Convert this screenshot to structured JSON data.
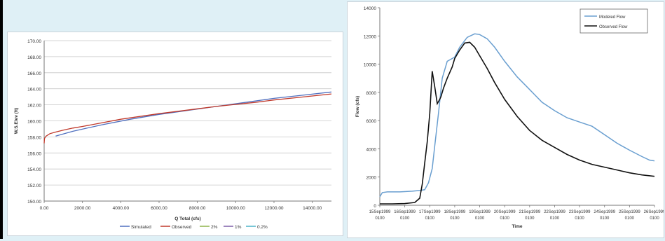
{
  "chart_data": [
    {
      "type": "line",
      "xlabel": "Q Total (cfs)",
      "ylabel": "W.S.Elev (ft)",
      "xlim": [
        0,
        15000
      ],
      "ylim": [
        150,
        170
      ],
      "grid": true,
      "legend_position": "bottom",
      "xticks": [
        "0.00",
        "2000.00",
        "4000.00",
        "6000.00",
        "8000.00",
        "10000.00",
        "12000.00",
        "14000.00"
      ],
      "yticks": [
        "150.00",
        "152.00",
        "154.00",
        "156.00",
        "158.00",
        "160.00",
        "162.00",
        "164.00",
        "166.00",
        "168.00",
        "170.00"
      ],
      "series": [
        {
          "name": "Simulated",
          "color": "#4f6fbf",
          "x": [
            600,
            1500,
            3000,
            4500,
            6000,
            7500,
            9000,
            10500,
            12000,
            13500,
            15000
          ],
          "y": [
            158.1,
            158.7,
            159.5,
            160.2,
            160.8,
            161.3,
            161.8,
            162.3,
            162.8,
            163.2,
            163.6
          ]
        },
        {
          "name": "Observed",
          "color": "#c0392b",
          "x": [
            0,
            20,
            100,
            300,
            600,
            1000,
            1500,
            2000,
            3000,
            4000,
            5000,
            6000,
            7000,
            8000,
            9000,
            10000,
            11000,
            12000,
            13000,
            14000,
            15000
          ],
          "y": [
            157.2,
            157.8,
            158.1,
            158.4,
            158.6,
            158.85,
            159.1,
            159.3,
            159.75,
            160.2,
            160.55,
            160.9,
            161.2,
            161.5,
            161.8,
            162.05,
            162.3,
            162.6,
            162.85,
            163.1,
            163.35
          ]
        },
        {
          "name": "2%",
          "color": "#8fb34a",
          "x": [],
          "y": []
        },
        {
          "name": "1%",
          "color": "#7d5fa8",
          "x": [],
          "y": []
        },
        {
          "name": "0.2%",
          "color": "#4cb3c9",
          "x": [],
          "y": []
        }
      ]
    },
    {
      "type": "line",
      "xlabel": "Time",
      "ylabel": "Flow (cfs)",
      "ylim": [
        0,
        14000
      ],
      "xlim": [
        0,
        11
      ],
      "grid": false,
      "legend_position": "top-right",
      "yticks": [
        "0",
        "2000",
        "4000",
        "6000",
        "8000",
        "10000",
        "12000",
        "14000"
      ],
      "xticks": [
        [
          "15Sep1999",
          "0100"
        ],
        [
          "16Sep1999",
          "0100"
        ],
        [
          "17Sep1999",
          "0100"
        ],
        [
          "18Sep1999",
          "0100"
        ],
        [
          "19Sep1999",
          "0100"
        ],
        [
          "20Sep1999",
          "0100"
        ],
        [
          "21Sep1999",
          "0100"
        ],
        [
          "22Sep1999",
          "0100"
        ],
        [
          "23Sep1999",
          "0100"
        ],
        [
          "24Sep1999",
          "0100"
        ],
        [
          "25Sep1999",
          "0100"
        ],
        [
          "26Sep1999",
          "0100"
        ]
      ],
      "series": [
        {
          "name": "Modeled Flow",
          "color": "#6a9fd0",
          "x": [
            0,
            0.1,
            0.3,
            0.8,
            1.3,
            1.6,
            1.8,
            1.95,
            2.1,
            2.2,
            2.35,
            2.5,
            2.7,
            3.0,
            3.2,
            3.5,
            3.8,
            4.0,
            4.3,
            4.6,
            5.0,
            5.5,
            6.0,
            6.5,
            7.0,
            7.5,
            8.0,
            8.5,
            9.0,
            9.5,
            10.0,
            10.5,
            10.8,
            11.0
          ],
          "y": [
            600,
            900,
            950,
            950,
            1000,
            1050,
            1100,
            1600,
            2600,
            4200,
            6500,
            9000,
            10200,
            10500,
            11200,
            11900,
            12150,
            12100,
            11800,
            11200,
            10200,
            9100,
            8200,
            7300,
            6700,
            6200,
            5900,
            5600,
            5000,
            4400,
            3900,
            3450,
            3200,
            3150
          ]
        },
        {
          "name": "Observed Flow",
          "color": "#111111",
          "x": [
            0,
            0.5,
            1.0,
            1.4,
            1.6,
            1.7,
            1.8,
            1.9,
            2.0,
            2.1,
            2.2,
            2.3,
            2.4,
            2.45,
            2.55,
            2.7,
            2.9,
            3.0,
            3.2,
            3.4,
            3.6,
            3.8,
            4.0,
            4.3,
            4.6,
            5.0,
            5.5,
            6.0,
            6.5,
            7.0,
            7.5,
            8.0,
            8.5,
            9.0,
            9.5,
            10.0,
            10.5,
            11.0
          ],
          "y": [
            100,
            100,
            120,
            200,
            500,
            1500,
            3000,
            4500,
            6500,
            9500,
            8400,
            7200,
            7500,
            7700,
            8300,
            9000,
            9800,
            10400,
            11000,
            11500,
            11550,
            11200,
            10600,
            9700,
            8700,
            7500,
            6300,
            5300,
            4600,
            4100,
            3600,
            3200,
            2900,
            2700,
            2500,
            2300,
            2150,
            2050
          ]
        }
      ]
    }
  ]
}
